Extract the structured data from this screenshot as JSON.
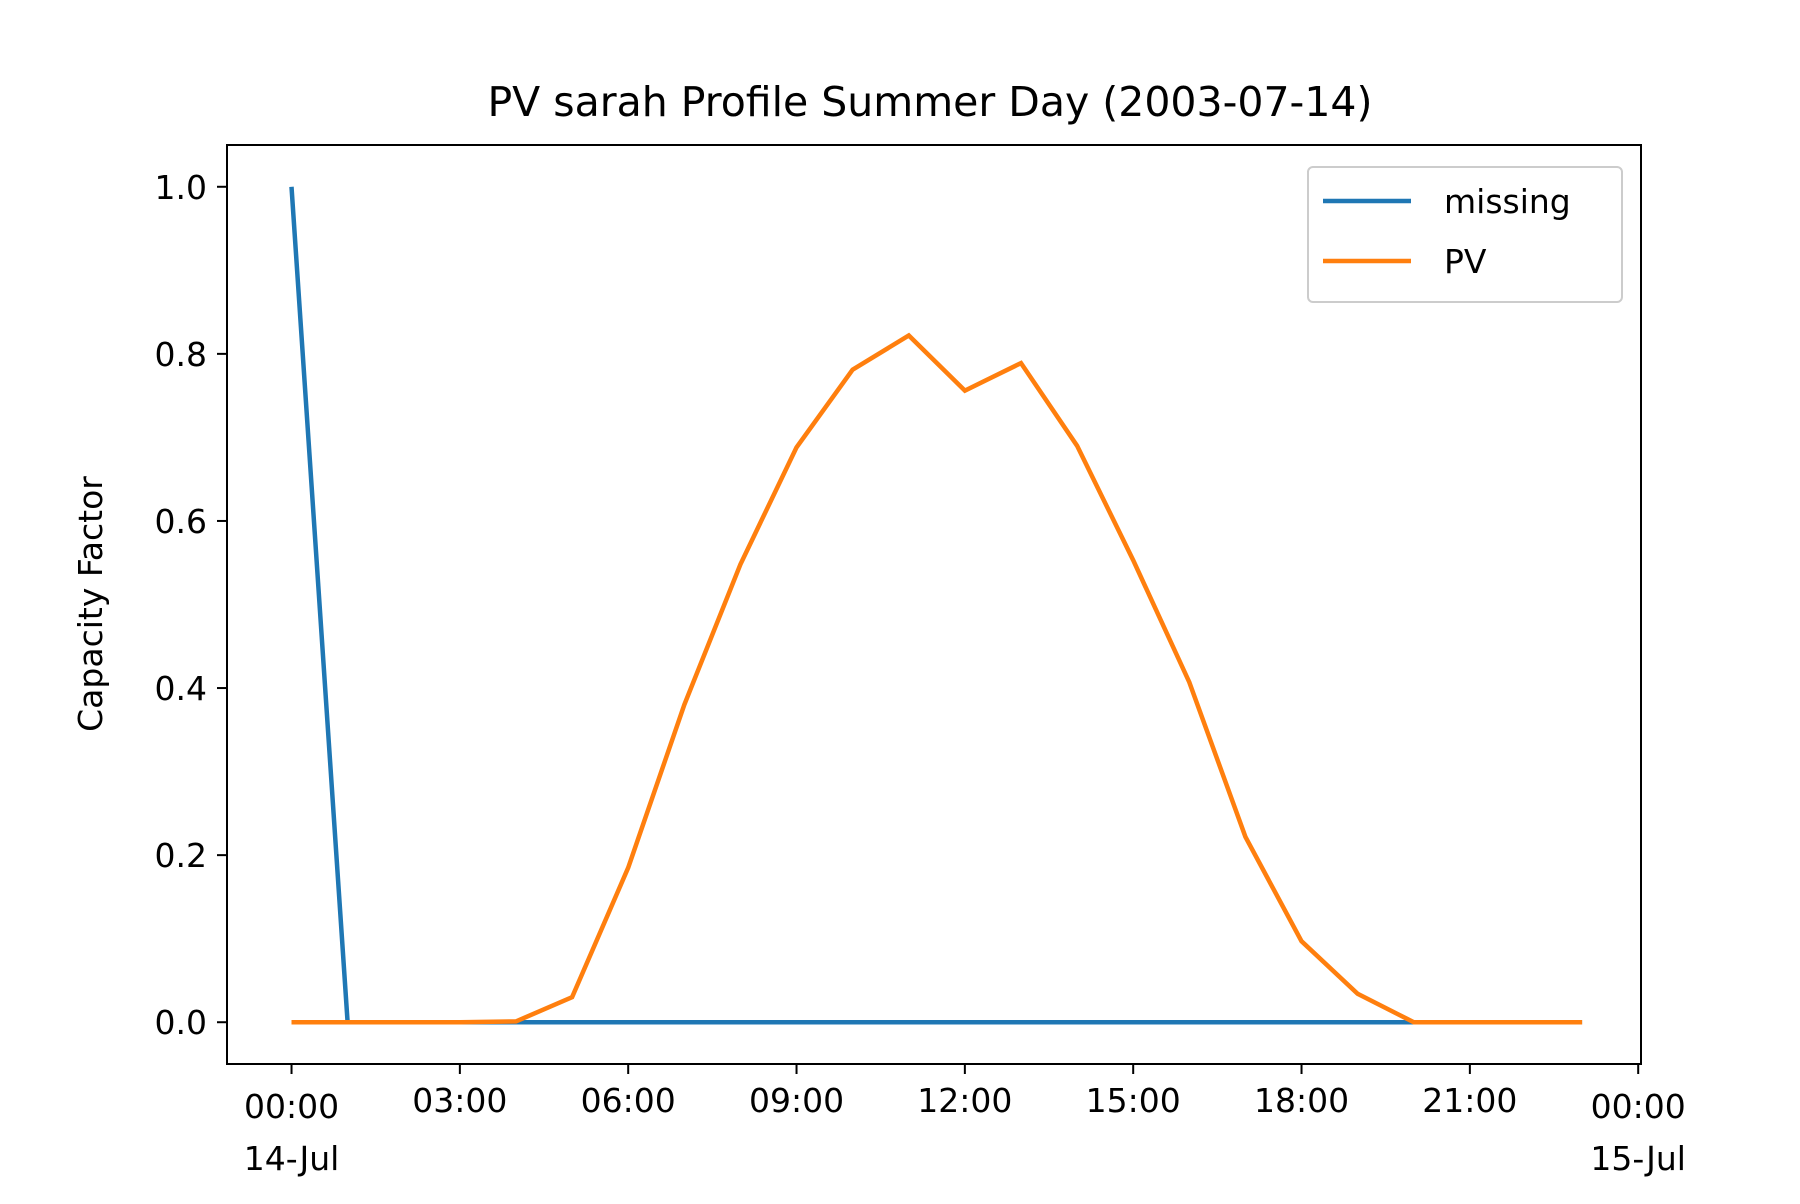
{
  "chart_data": {
    "type": "line",
    "title": "PV sarah Profile Summer Day (2003-07-14)",
    "xlabel": "",
    "ylabel": "Capacity Factor",
    "x_hours": [
      0,
      1,
      2,
      3,
      4,
      5,
      6,
      7,
      8,
      9,
      10,
      11,
      12,
      13,
      14,
      15,
      16,
      17,
      18,
      19,
      20,
      21,
      22,
      23
    ],
    "xlim": [
      -1.15,
      24.05
    ],
    "ylim": [
      -0.05,
      1.05
    ],
    "x_ticks": [
      {
        "hour": 0,
        "time": "00:00",
        "date": "14-Jul"
      },
      {
        "hour": 3,
        "time": "03:00",
        "date": ""
      },
      {
        "hour": 6,
        "time": "06:00",
        "date": ""
      },
      {
        "hour": 9,
        "time": "09:00",
        "date": ""
      },
      {
        "hour": 12,
        "time": "12:00",
        "date": ""
      },
      {
        "hour": 15,
        "time": "15:00",
        "date": ""
      },
      {
        "hour": 18,
        "time": "18:00",
        "date": ""
      },
      {
        "hour": 21,
        "time": "21:00",
        "date": ""
      },
      {
        "hour": 24,
        "time": "00:00",
        "date": "15-Jul"
      }
    ],
    "y_ticks": [
      {
        "value": 0.0,
        "label": "0.0"
      },
      {
        "value": 0.2,
        "label": "0.2"
      },
      {
        "value": 0.4,
        "label": "0.4"
      },
      {
        "value": 0.6,
        "label": "0.6"
      },
      {
        "value": 0.8,
        "label": "0.8"
      },
      {
        "value": 1.0,
        "label": "1.0"
      }
    ],
    "grid": false,
    "legend_position": "top-right",
    "series": [
      {
        "name": "missing",
        "color": "#1f77b4",
        "values": [
          1.0,
          0,
          0,
          0,
          0,
          0,
          0,
          0,
          0,
          0,
          0,
          0,
          0,
          0,
          0,
          0,
          0,
          0,
          0,
          0,
          0,
          0,
          0,
          0
        ]
      },
      {
        "name": "PV",
        "color": "#ff7f0e",
        "values": [
          0,
          0,
          0,
          0,
          0.001,
          0.03,
          0.185,
          0.38,
          0.548,
          0.688,
          0.781,
          0.822,
          0.756,
          0.789,
          0.69,
          0.553,
          0.407,
          0.222,
          0.097,
          0.034,
          0,
          0,
          0,
          0
        ]
      }
    ]
  }
}
